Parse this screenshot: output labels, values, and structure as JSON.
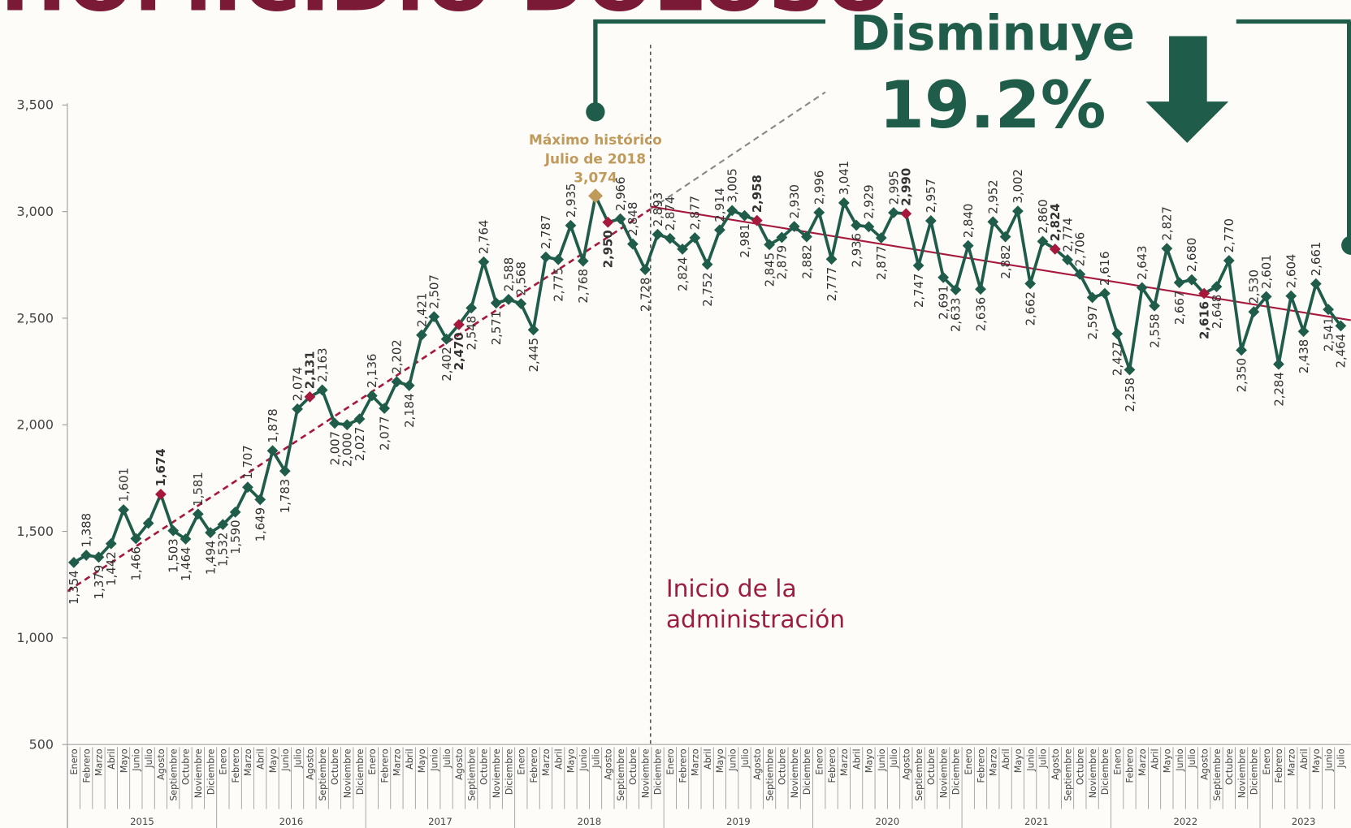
{
  "chart_data": {
    "type": "line",
    "title": "HOMICIDIO DOLOSO",
    "annotations": {
      "headline": "Disminuye",
      "change": "19.2%",
      "max_note_1": "Máximo histórico",
      "max_note_2": "Julio de 2018",
      "start_note_1": "Inicio de la",
      "start_note_2": "administración"
    },
    "years": [
      "2015",
      "2016",
      "2017",
      "2018",
      "2019",
      "2020",
      "2021",
      "2022",
      "2023"
    ],
    "categories": [
      "Enero",
      "Febrero",
      "Marzo",
      "Abril",
      "Mayo",
      "Junio",
      "Julio",
      "Agosto",
      "Septiembre",
      "Octubre",
      "Noviembre",
      "Diciembre",
      "Enero",
      "Febrero",
      "Marzo",
      "Abril",
      "Mayo",
      "Junio",
      "Julio",
      "Agosto",
      "Septiembre",
      "Octubre",
      "Noviembre",
      "Diciembre",
      "Enero",
      "Febrero",
      "Marzo",
      "Abril",
      "Mayo",
      "Junio",
      "Julio",
      "Agosto",
      "Septiembre",
      "Octubre",
      "Noviembre",
      "Diciembre",
      "Enero",
      "Febrero",
      "Marzo",
      "Abril",
      "Mayo",
      "Junio",
      "Julio",
      "Agosto",
      "Septiembre",
      "Octubre",
      "Noviembre",
      "Diciembre",
      "Enero",
      "Febrero",
      "Marzo",
      "Abril",
      "Mayo",
      "Junio",
      "Julio",
      "Agosto",
      "Septiembre",
      "Octubre",
      "Noviembre",
      "Diciembre",
      "Enero",
      "Febrero",
      "Marzo",
      "Abril",
      "Mayo",
      "Junio",
      "Julio",
      "Agosto",
      "Septiembre",
      "Octubre",
      "Noviembre",
      "Diciembre",
      "Enero",
      "Febrero",
      "Marzo",
      "Abril",
      "Mayo",
      "Junio",
      "Julio",
      "Agosto",
      "Septiembre",
      "Octubre",
      "Noviembre",
      "Diciembre",
      "Enero",
      "Febrero",
      "Marzo",
      "Abril",
      "Mayo",
      "Junio",
      "Julio",
      "Agosto",
      "Septiembre",
      "Octubre",
      "Noviembre",
      "Diciembre",
      "Enero",
      "Febrero",
      "Marzo",
      "Abril",
      "Mayo",
      "Junio",
      "Julio"
    ],
    "series": [
      {
        "name": "Homicidio doloso",
        "color": "#1f5c4a",
        "values": [
          1354,
          1388,
          1379,
          1442,
          1601,
          1466,
          1538,
          1674,
          1503,
          1464,
          1581,
          1494,
          1532,
          1590,
          1707,
          1649,
          1878,
          1783,
          2074,
          2131,
          2163,
          2007,
          2000,
          2027,
          2136,
          2077,
          2202,
          2184,
          2421,
          2507,
          2402,
          2470,
          2548,
          2764,
          2571,
          2588,
          2568,
          2445,
          2787,
          2775,
          2935,
          2768,
          3074,
          2950,
          2966,
          2848,
          2728,
          2893,
          2874,
          2824,
          2877,
          2752,
          2914,
          3005,
          2981,
          2958,
          2845,
          2879,
          2930,
          2882,
          2996,
          2777,
          3041,
          2936,
          2929,
          2877,
          2995,
          2990,
          2747,
          2957,
          2691,
          2633,
          2840,
          2636,
          2952,
          2882,
          3002,
          2662,
          2860,
          2824,
          2774,
          2706,
          2597,
          2616,
          2427,
          2258,
          2643,
          2558,
          2827,
          2667,
          2680,
          2616,
          2648,
          2770,
          2350,
          2530,
          2601,
          2284,
          2604,
          2438,
          2661,
          2541,
          2464
        ],
        "value_labels": [
          "1,354",
          "1,388",
          "1,379",
          "1,442",
          "1,601",
          "1,466",
          null,
          "1,674",
          "1,503",
          "1,464",
          "1,581",
          "1,494",
          "1,532",
          "1,590",
          "1,707",
          "1,649",
          "1,878",
          "1,783",
          "2,074",
          "2,131",
          "2,163",
          "2,007",
          "2,000",
          "2,027",
          "2,136",
          "2,077",
          "2,202",
          "2,184",
          "2,421",
          "2,507",
          "2,402",
          "2,470",
          "2,548",
          "2,764",
          "2,571",
          "2,588",
          "2,568",
          "2,445",
          "2,787",
          "2,775",
          "2,935",
          "2,768",
          "3,074",
          "2,950",
          "2,966",
          "2,848",
          "2,728",
          "2,893",
          "2,874",
          "2,824",
          "2,877",
          "2,752",
          "2,914",
          "3,005",
          "2,981",
          "2,958",
          "2,845",
          "2,879",
          "2,930",
          "2,882",
          "2,996",
          "2,777",
          "3,041",
          "2,936",
          "2,929",
          "2,877",
          "2,995",
          "2,990",
          "2,747",
          "2,957",
          "2,691",
          "2,633",
          "2,840",
          "2,636",
          "2,952",
          "2,882",
          "3,002",
          "2,662",
          "2,860",
          "2,824",
          "2,774",
          "2,706",
          "2,597",
          "2,616",
          "2,427",
          "2,258",
          "2,643",
          "2,558",
          "2,827",
          "2,667",
          "2,680",
          "2,616",
          "2,648",
          "2,770",
          "2,350",
          "2,530",
          "2,601",
          "2,284",
          "2,604",
          "2,438",
          "2,661",
          "2,541",
          "2,464"
        ]
      }
    ],
    "highlight_category": "Agosto",
    "highlight_color": "#a6193c",
    "max_color": "#c09a5b",
    "ylim": [
      500,
      3500
    ],
    "yticks": [
      500,
      {
        "value": 1000,
        "label": "1,000"
      },
      {
        "value": 1500,
        "label": "1,500"
      },
      {
        "value": 2000,
        "label": "2,000"
      },
      {
        "value": 2500,
        "label": "2,500"
      },
      {
        "value": 3000,
        "label": "3,000"
      },
      {
        "value": 3500,
        "label": "3,500"
      }
    ]
  }
}
